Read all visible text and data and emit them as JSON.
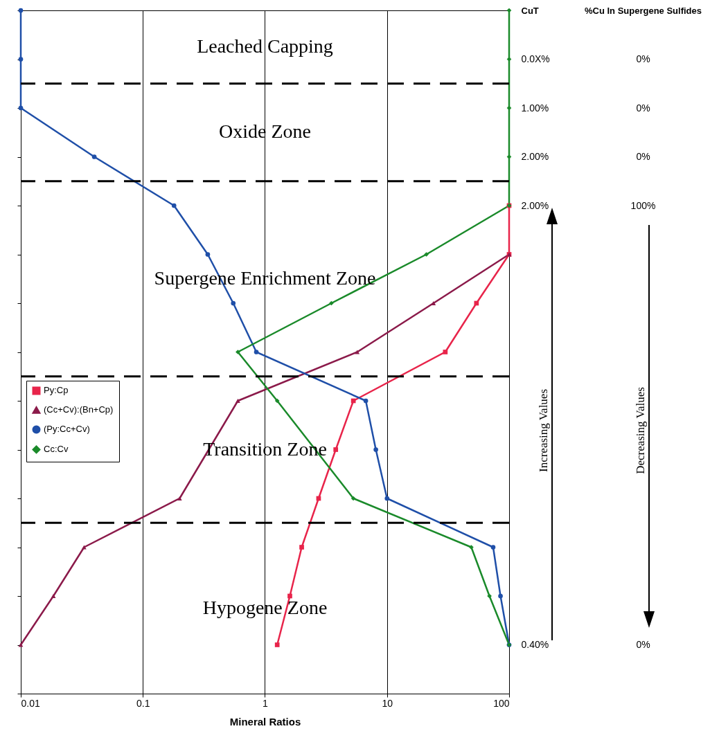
{
  "chart_data": {
    "type": "line",
    "orientation": "horizontal",
    "xlabel": "Mineral Ratios",
    "ylabel": "CuT",
    "y2label": "%Cu In Supergene Sulfides",
    "categories": [
      null,
      "0.0X%",
      "1.00%",
      "2.00%",
      "2.00%",
      null,
      null,
      null,
      null,
      null,
      null,
      null,
      null,
      "0.40%",
      null
    ],
    "y2_categories": [
      null,
      "0%",
      "0%",
      "0%",
      "100%",
      null,
      null,
      null,
      null,
      null,
      null,
      null,
      null,
      "0%",
      null
    ],
    "log": "x",
    "xlim": [
      0.01,
      100
    ],
    "xticks": [
      0.01,
      0.1,
      1,
      10,
      100
    ],
    "grid": "x",
    "legend": "left",
    "series": [
      {
        "name": "Py:Cp",
        "color": "#e8244a",
        "marker": "square",
        "values": [
          null,
          null,
          null,
          null,
          100,
          100,
          54,
          30,
          5.3,
          3.8,
          2.75,
          2.0,
          1.6,
          1.26,
          null
        ]
      },
      {
        "name": "(Cc+Cv):(Bn+Cp)",
        "color": "#8b1a4a",
        "marker": "triangle",
        "values": [
          null,
          null,
          null,
          null,
          null,
          100,
          24,
          5.7,
          0.6,
          null,
          0.2,
          0.033,
          0.0185,
          0.01,
          null
        ]
      },
      {
        "name": "(Py:Cc+Cv)",
        "color": "#1f4fa8",
        "marker": "circle",
        "values": [
          0.01,
          0.01,
          0.01,
          0.04,
          0.18,
          0.34,
          0.55,
          0.85,
          6.7,
          8.1,
          10,
          74,
          85,
          100,
          null
        ]
      },
      {
        "name": "Cc:Cv",
        "color": "#1a8a2a",
        "marker": "diamond",
        "values": [
          100,
          100,
          100,
          100,
          100,
          21,
          3.5,
          0.6,
          1.26,
          null,
          5.3,
          49,
          69,
          100,
          null
        ]
      }
    ],
    "annotations": [
      "Leached Capping",
      "Oxide Zone",
      "Supergene Enrichment Zone",
      "Transition Zone",
      "Hypogene Zone",
      "Increasing Values",
      "Decreasing Values"
    ]
  }
}
